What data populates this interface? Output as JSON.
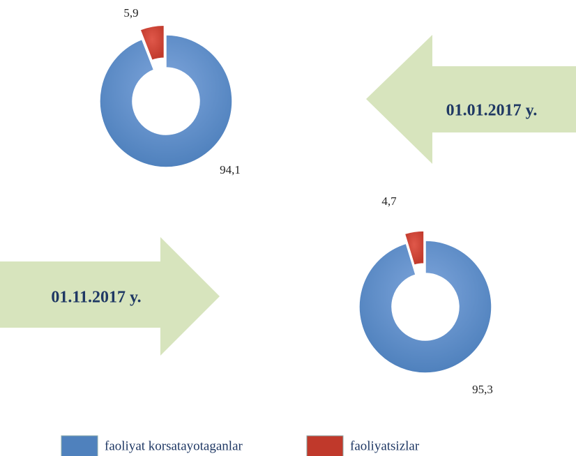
{
  "chart_data": [
    {
      "type": "donut",
      "title": "01.01.2017 y.",
      "values": [
        94.1,
        5.9
      ],
      "value_labels": [
        "94,1",
        "5,9"
      ]
    },
    {
      "type": "donut",
      "title": "01.11.2017 y.",
      "values": [
        95.3,
        4.7
      ],
      "value_labels": [
        "95,3",
        "4,7"
      ]
    }
  ],
  "legend": {
    "names": [
      "faoliyat korsatayotaganlar",
      "faoliyatsizlar"
    ],
    "colors": [
      "#4f81bd",
      "#c0392b"
    ]
  }
}
